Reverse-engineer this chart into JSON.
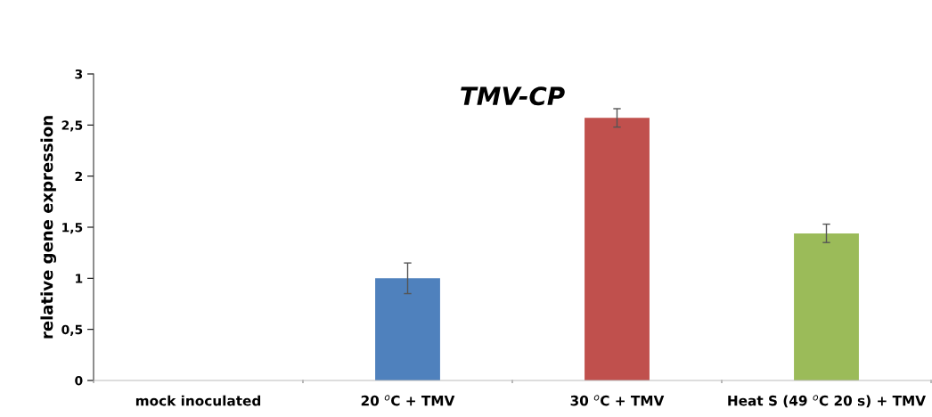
{
  "chart_data": {
    "type": "bar",
    "title": "TMV-CP",
    "ylabel": "relative gene expression",
    "categories": [
      "mock inoculated",
      "20 $^{o}$C + TMV",
      "30 $^{o}$C + TMV",
      "Heat S (49 $^{o}$C 20 s) + TMV"
    ],
    "values": [
      0,
      1.0,
      2.57,
      1.44
    ],
    "errors": [
      null,
      0.15,
      0.09,
      0.09
    ],
    "colors": [
      "#4f81bd",
      "#4f81bd",
      "#c0504d",
      "#9bbb59"
    ],
    "ylim": [
      0,
      3
    ],
    "yticks": [
      0,
      {
        "value": 0.5,
        "label": "0,5"
      },
      1,
      {
        "value": 1.5,
        "label": "1,5"
      },
      2,
      {
        "value": 2.5,
        "label": "2,5"
      },
      3
    ],
    "grid": false,
    "legend": false
  }
}
